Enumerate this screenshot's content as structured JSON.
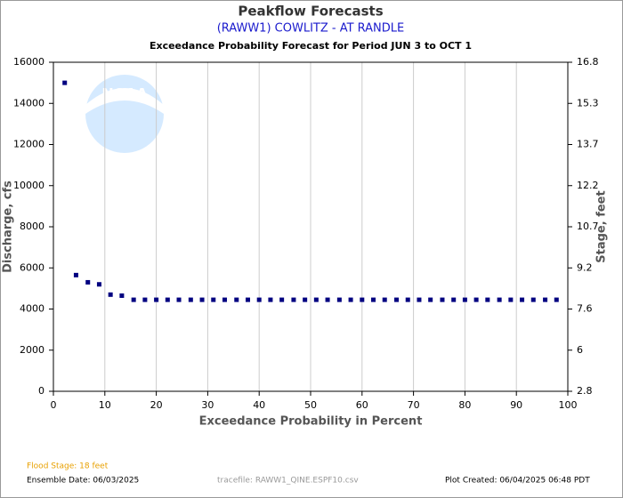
{
  "chart_data": {
    "type": "scatter",
    "title": "Peakflow Forecasts",
    "subtitle": "(RAWW1) COWLITZ - AT RANDLE",
    "description": "Exceedance Probability Forecast for Period JUN 3 to OCT 1",
    "x_label": "Exceedance Probability in Percent",
    "y_label": "Discharge, cfs",
    "y2_label": "Stage, feet",
    "watermark": "NOAA",
    "flood_stage": "Flood Stage: 18 feet",
    "ensemble_date": "Ensemble Date: 06/03/2025",
    "tracefile": "tracefile: RAWW1_QINE.ESPF10.csv",
    "plot_created": "Plot Created: 06/04/2025 06:48 PDT",
    "xlim": [
      0,
      100
    ],
    "xticks": [
      0,
      10,
      20,
      30,
      40,
      50,
      60,
      70,
      80,
      90,
      100
    ],
    "ylim": [
      0,
      16000
    ],
    "yticks": [
      0,
      2000,
      4000,
      6000,
      8000,
      10000,
      12000,
      14000,
      16000
    ],
    "y2ticks": [
      2.8,
      6.0,
      7.6,
      9.2,
      10.7,
      12.2,
      13.7,
      15.3,
      16.8
    ],
    "grid": true,
    "series": [
      {
        "color": "#000080",
        "x": [
          2.2,
          4.4,
          6.7,
          8.9,
          11.1,
          13.3,
          15.6,
          17.8,
          20,
          22.2,
          24.4,
          26.7,
          28.9,
          31.1,
          33.3,
          35.6,
          37.8,
          40,
          42.2,
          44.4,
          46.7,
          48.9,
          51.1,
          53.3,
          55.6,
          57.8,
          60,
          62.2,
          64.4,
          66.7,
          68.9,
          71.1,
          73.3,
          75.6,
          77.8,
          80,
          82.2,
          84.4,
          86.7,
          88.9,
          91.1,
          93.3,
          95.6,
          97.8
        ],
        "values": [
          15000,
          5650,
          5300,
          5200,
          4700,
          4650,
          4450,
          4450,
          4450,
          4450,
          4450,
          4450,
          4450,
          4450,
          4450,
          4450,
          4450,
          4450,
          4450,
          4450,
          4450,
          4450,
          4450,
          4450,
          4450,
          4450,
          4450,
          4450,
          4450,
          4450,
          4450,
          4450,
          4450,
          4450,
          4450,
          4450,
          4450,
          4450,
          4450,
          4450,
          4450,
          4450,
          4450,
          4450
        ]
      }
    ]
  }
}
